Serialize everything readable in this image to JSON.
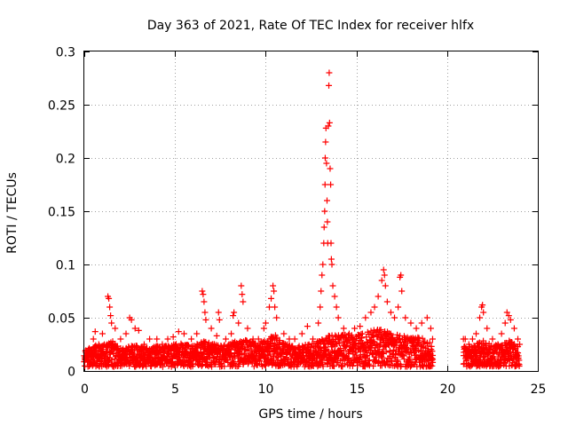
{
  "chart_data": {
    "type": "scatter",
    "title": "Day 363 of 2021, Rate Of TEC Index for receiver hlfx",
    "xlabel": "GPS time / hours",
    "ylabel": "ROTI / TECUs",
    "xlim": [
      0,
      25
    ],
    "ylim": [
      0,
      0.3
    ],
    "xticks": [
      0,
      5,
      10,
      15,
      20,
      25
    ],
    "yticks": [
      0,
      0.05,
      0.1,
      0.15,
      0.2,
      0.25,
      0.3
    ],
    "xtick_labels": [
      "0",
      "5",
      "10",
      "15",
      "20",
      "25"
    ],
    "ytick_labels": [
      "0",
      "0.05",
      "0.1",
      "0.15",
      "0.2",
      "0.25",
      "0.3"
    ],
    "grid": true,
    "marker": "+",
    "color": "#ff0000",
    "series": [
      {
        "name": "ROTI",
        "points": [
          [
            0.1,
            0.012
          ],
          [
            0.3,
            0.02
          ],
          [
            0.5,
            0.03
          ],
          [
            0.6,
            0.037
          ],
          [
            0.8,
            0.025
          ],
          [
            1.0,
            0.035
          ],
          [
            1.3,
            0.07
          ],
          [
            1.35,
            0.068
          ],
          [
            1.4,
            0.06
          ],
          [
            1.45,
            0.052
          ],
          [
            1.5,
            0.045
          ],
          [
            1.7,
            0.04
          ],
          [
            2.0,
            0.03
          ],
          [
            2.3,
            0.035
          ],
          [
            2.5,
            0.05
          ],
          [
            2.6,
            0.048
          ],
          [
            2.8,
            0.04
          ],
          [
            3.0,
            0.038
          ],
          [
            3.3,
            0.025
          ],
          [
            3.6,
            0.03
          ],
          [
            4.0,
            0.03
          ],
          [
            4.3,
            0.025
          ],
          [
            4.6,
            0.03
          ],
          [
            4.9,
            0.032
          ],
          [
            5.2,
            0.037
          ],
          [
            5.5,
            0.035
          ],
          [
            5.9,
            0.03
          ],
          [
            6.2,
            0.035
          ],
          [
            6.5,
            0.075
          ],
          [
            6.55,
            0.072
          ],
          [
            6.6,
            0.065
          ],
          [
            6.65,
            0.055
          ],
          [
            6.7,
            0.048
          ],
          [
            7.0,
            0.04
          ],
          [
            7.3,
            0.033
          ],
          [
            7.4,
            0.055
          ],
          [
            7.45,
            0.048
          ],
          [
            7.8,
            0.03
          ],
          [
            8.1,
            0.035
          ],
          [
            8.2,
            0.052
          ],
          [
            8.25,
            0.055
          ],
          [
            8.5,
            0.045
          ],
          [
            8.65,
            0.08
          ],
          [
            8.7,
            0.072
          ],
          [
            8.75,
            0.065
          ],
          [
            9.0,
            0.04
          ],
          [
            9.3,
            0.03
          ],
          [
            9.6,
            0.03
          ],
          [
            9.9,
            0.04
          ],
          [
            10.0,
            0.045
          ],
          [
            10.2,
            0.06
          ],
          [
            10.3,
            0.068
          ],
          [
            10.4,
            0.08
          ],
          [
            10.45,
            0.075
          ],
          [
            10.5,
            0.06
          ],
          [
            10.6,
            0.05
          ],
          [
            11.0,
            0.035
          ],
          [
            11.3,
            0.03
          ],
          [
            11.6,
            0.03
          ],
          [
            12.0,
            0.035
          ],
          [
            12.3,
            0.042
          ],
          [
            12.6,
            0.03
          ],
          [
            12.9,
            0.045
          ],
          [
            13.0,
            0.06
          ],
          [
            13.05,
            0.075
          ],
          [
            13.1,
            0.09
          ],
          [
            13.15,
            0.1
          ],
          [
            13.2,
            0.12
          ],
          [
            13.22,
            0.135
          ],
          [
            13.25,
            0.15
          ],
          [
            13.27,
            0.175
          ],
          [
            13.28,
            0.2
          ],
          [
            13.3,
            0.215
          ],
          [
            13.32,
            0.228
          ],
          [
            13.35,
            0.195
          ],
          [
            13.38,
            0.16
          ],
          [
            13.4,
            0.14
          ],
          [
            13.42,
            0.12
          ],
          [
            13.45,
            0.23
          ],
          [
            13.48,
            0.268
          ],
          [
            13.5,
            0.28
          ],
          [
            13.52,
            0.233
          ],
          [
            13.55,
            0.19
          ],
          [
            13.58,
            0.175
          ],
          [
            13.6,
            0.12
          ],
          [
            13.62,
            0.105
          ],
          [
            13.65,
            0.1
          ],
          [
            13.7,
            0.08
          ],
          [
            13.8,
            0.07
          ],
          [
            13.9,
            0.06
          ],
          [
            14.0,
            0.05
          ],
          [
            14.3,
            0.04
          ],
          [
            14.6,
            0.035
          ],
          [
            14.9,
            0.04
          ],
          [
            15.2,
            0.042
          ],
          [
            15.5,
            0.05
          ],
          [
            15.8,
            0.055
          ],
          [
            16.0,
            0.06
          ],
          [
            16.2,
            0.07
          ],
          [
            16.4,
            0.085
          ],
          [
            16.5,
            0.095
          ],
          [
            16.55,
            0.09
          ],
          [
            16.6,
            0.08
          ],
          [
            16.7,
            0.065
          ],
          [
            16.9,
            0.055
          ],
          [
            17.1,
            0.05
          ],
          [
            17.3,
            0.06
          ],
          [
            17.4,
            0.088
          ],
          [
            17.45,
            0.09
          ],
          [
            17.5,
            0.075
          ],
          [
            17.7,
            0.05
          ],
          [
            18.0,
            0.045
          ],
          [
            18.3,
            0.04
          ],
          [
            18.6,
            0.045
          ],
          [
            18.9,
            0.05
          ],
          [
            19.1,
            0.04
          ],
          [
            19.2,
            0.03
          ],
          [
            20.9,
            0.03
          ],
          [
            21.0,
            0.03
          ],
          [
            21.2,
            0.025
          ],
          [
            21.4,
            0.03
          ],
          [
            21.6,
            0.035
          ],
          [
            21.8,
            0.05
          ],
          [
            21.9,
            0.06
          ],
          [
            21.95,
            0.062
          ],
          [
            22.0,
            0.055
          ],
          [
            22.2,
            0.04
          ],
          [
            22.5,
            0.03
          ],
          [
            22.8,
            0.025
          ],
          [
            23.0,
            0.035
          ],
          [
            23.2,
            0.045
          ],
          [
            23.3,
            0.055
          ],
          [
            23.4,
            0.052
          ],
          [
            23.5,
            0.048
          ],
          [
            23.7,
            0.04
          ],
          [
            23.9,
            0.03
          ],
          [
            24.0,
            0.025
          ]
        ],
        "band": [
          [
            0.0,
            0.015
          ],
          [
            0.5,
            0.02
          ],
          [
            1.0,
            0.02
          ],
          [
            1.5,
            0.025
          ],
          [
            2.0,
            0.018
          ],
          [
            2.5,
            0.02
          ],
          [
            3.0,
            0.02
          ],
          [
            3.5,
            0.018
          ],
          [
            4.0,
            0.02
          ],
          [
            4.5,
            0.02
          ],
          [
            5.0,
            0.022
          ],
          [
            5.5,
            0.022
          ],
          [
            6.0,
            0.02
          ],
          [
            6.5,
            0.025
          ],
          [
            7.0,
            0.022
          ],
          [
            7.5,
            0.02
          ],
          [
            8.0,
            0.022
          ],
          [
            8.5,
            0.025
          ],
          [
            9.0,
            0.025
          ],
          [
            9.5,
            0.022
          ],
          [
            10.0,
            0.025
          ],
          [
            10.5,
            0.03
          ],
          [
            11.0,
            0.022
          ],
          [
            11.5,
            0.02
          ],
          [
            12.0,
            0.02
          ],
          [
            12.5,
            0.022
          ],
          [
            13.0,
            0.025
          ],
          [
            13.5,
            0.03
          ],
          [
            14.0,
            0.03
          ],
          [
            14.5,
            0.03
          ],
          [
            15.0,
            0.03
          ],
          [
            15.5,
            0.032
          ],
          [
            16.0,
            0.035
          ],
          [
            16.5,
            0.035
          ],
          [
            17.0,
            0.03
          ],
          [
            17.5,
            0.03
          ],
          [
            18.0,
            0.028
          ],
          [
            18.5,
            0.028
          ],
          [
            19.0,
            0.025
          ],
          [
            19.2,
            0.02
          ],
          [
            20.9,
            0.02
          ],
          [
            21.5,
            0.02
          ],
          [
            22.0,
            0.025
          ],
          [
            22.5,
            0.02
          ],
          [
            23.0,
            0.022
          ],
          [
            23.5,
            0.025
          ],
          [
            24.0,
            0.02
          ]
        ]
      }
    ]
  }
}
